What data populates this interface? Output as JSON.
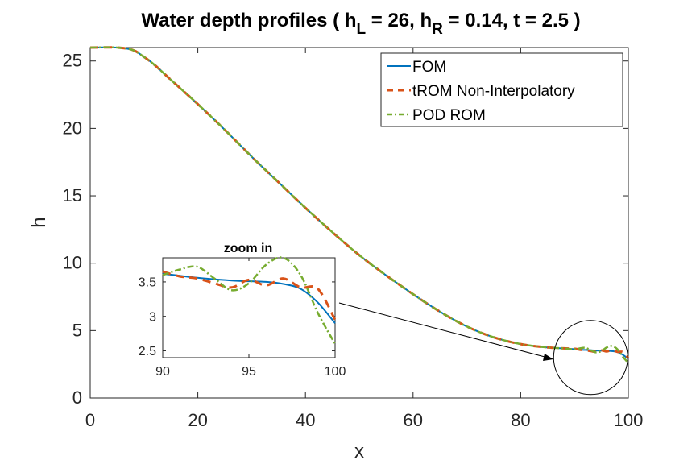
{
  "chart_data": {
    "type": "line",
    "title": {
      "prefix": "Water depth profiles ( h",
      "sub1": "L",
      "mid1": " = 26, h",
      "sub2": "R",
      "mid2": " = 0.14, t = 2.5 )"
    },
    "xlabel": "x",
    "ylabel": "h",
    "xlim": [
      0,
      100
    ],
    "ylim": [
      0,
      26
    ],
    "xticks": [
      0,
      20,
      40,
      60,
      80,
      100
    ],
    "yticks": [
      0,
      5,
      10,
      15,
      20,
      25
    ],
    "series": [
      {
        "name": "FOM",
        "color": "#0072BD",
        "style": "solid",
        "x": [
          0,
          5,
          8,
          10,
          12,
          15,
          20,
          25,
          30,
          35,
          40,
          45,
          50,
          55,
          60,
          65,
          70,
          75,
          80,
          85,
          88,
          90,
          92,
          94,
          96,
          97,
          98,
          99,
          100
        ],
        "y": [
          26,
          26,
          25.8,
          25.3,
          24.7,
          23.6,
          21.8,
          19.9,
          17.9,
          16.0,
          14.1,
          12.3,
          10.6,
          9.1,
          7.7,
          6.4,
          5.3,
          4.5,
          4.0,
          3.75,
          3.68,
          3.62,
          3.56,
          3.52,
          3.5,
          3.47,
          3.4,
          3.2,
          2.9
        ]
      },
      {
        "name": "tROM Non-Interpolatory",
        "color": "#D95319",
        "style": "dashed",
        "x": [
          0,
          5,
          8,
          10,
          12,
          15,
          20,
          25,
          30,
          35,
          40,
          45,
          50,
          55,
          60,
          65,
          70,
          75,
          80,
          85,
          88,
          90,
          91,
          92,
          93,
          94,
          95,
          96,
          97,
          98,
          99,
          100
        ],
        "y": [
          26,
          26,
          25.8,
          25.3,
          24.7,
          23.6,
          21.8,
          19.9,
          17.9,
          16.0,
          14.1,
          12.3,
          10.6,
          9.1,
          7.7,
          6.4,
          5.3,
          4.5,
          4.0,
          3.75,
          3.68,
          3.65,
          3.58,
          3.55,
          3.48,
          3.42,
          3.53,
          3.45,
          3.55,
          3.42,
          3.4,
          2.95
        ]
      },
      {
        "name": "POD ROM",
        "color": "#77AC30",
        "style": "dashdot",
        "x": [
          0,
          5,
          8,
          10,
          12,
          15,
          20,
          25,
          30,
          35,
          40,
          45,
          50,
          55,
          60,
          65,
          70,
          75,
          80,
          85,
          88,
          90,
          91,
          92,
          93,
          94,
          95,
          96,
          97,
          98,
          99,
          100
        ],
        "y": [
          26,
          26,
          25.8,
          25.3,
          24.7,
          23.6,
          21.8,
          19.9,
          17.9,
          16.0,
          14.1,
          12.3,
          10.6,
          9.1,
          7.7,
          6.4,
          5.3,
          4.5,
          4.0,
          3.75,
          3.68,
          3.6,
          3.68,
          3.72,
          3.55,
          3.38,
          3.48,
          3.75,
          3.85,
          3.6,
          3.05,
          2.6
        ]
      }
    ],
    "legend": {
      "position": "top-right",
      "entries": [
        "FOM",
        "tROM Non-Interpolatory",
        "POD ROM"
      ]
    },
    "inset": {
      "title": "zoom in",
      "xlim": [
        90,
        100
      ],
      "ylim": [
        2.4,
        3.85
      ],
      "xticks": [
        90,
        95,
        100
      ],
      "yticks": [
        2.5,
        3,
        3.5
      ],
      "highlight_circle": {
        "cx_data": 93,
        "cy_data": 3.0
      },
      "arrow_from": "inset right edge",
      "arrow_to": "zoom circle"
    }
  }
}
